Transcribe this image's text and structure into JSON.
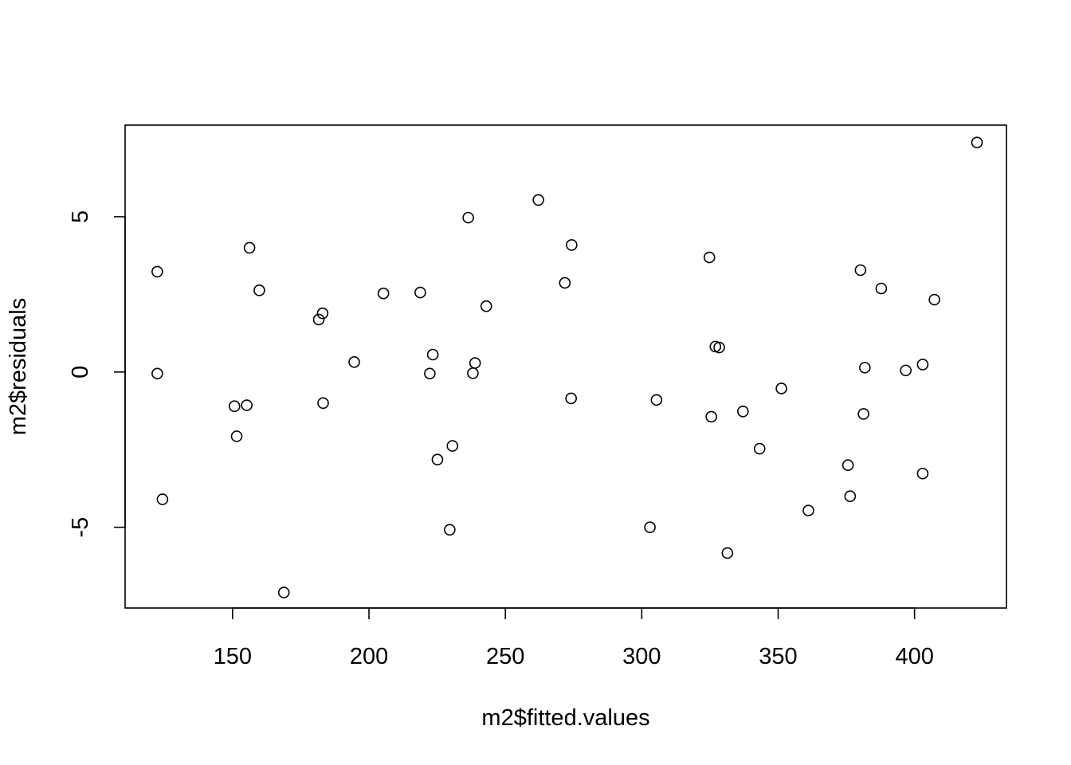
{
  "chart_data": {
    "type": "scatter",
    "title": "",
    "xlabel": "m2$fitted.values",
    "ylabel": "m2$residuals",
    "xlim": [
      110.6,
      433.7
    ],
    "ylim": [
      -7.6,
      7.95
    ],
    "x_ticks": [
      150,
      200,
      250,
      300,
      350,
      400
    ],
    "x_tick_labels": [
      "150",
      "200",
      "250",
      "300",
      "350",
      "400"
    ],
    "y_ticks": [
      -5,
      0,
      5
    ],
    "y_tick_labels": [
      "-5",
      "0",
      "5"
    ],
    "grid": false,
    "legend": "none",
    "marker": "open-circle",
    "colors": {
      "points": "#000000",
      "axes": "#000000",
      "background": "#ffffff"
    },
    "x": [
      122.4,
      122.4,
      124.3,
      150.7,
      151.5,
      155.2,
      156.2,
      159.8,
      168.8,
      181.6,
      183.0,
      183.2,
      194.6,
      205.3,
      218.8,
      222.3,
      223.4,
      225.1,
      229.6,
      230.6,
      236.4,
      238.1,
      238.9,
      243.0,
      262.1,
      271.8,
      274.1,
      274.3,
      303.0,
      305.4,
      324.8,
      325.5,
      327.0,
      328.4,
      331.4,
      337.1,
      343.2,
      351.2,
      361.1,
      375.6,
      376.4,
      380.2,
      381.3,
      381.8,
      387.8,
      396.8,
      403.0,
      403.0,
      407.3,
      422.9
    ],
    "y": [
      3.23,
      -0.05,
      -4.1,
      -1.1,
      -2.07,
      -1.07,
      4.0,
      2.63,
      -7.1,
      1.69,
      1.89,
      -1.0,
      0.32,
      2.53,
      2.56,
      -0.05,
      0.56,
      -2.82,
      -5.08,
      -2.38,
      4.97,
      -0.04,
      0.29,
      2.12,
      5.54,
      2.87,
      -0.85,
      4.09,
      -5.0,
      -0.9,
      3.69,
      -1.44,
      0.82,
      0.79,
      -5.83,
      -1.27,
      -2.47,
      -0.53,
      -4.46,
      -3.0,
      -4.0,
      3.28,
      -1.35,
      0.14,
      2.69,
      0.05,
      0.24,
      -3.27,
      2.33,
      7.39
    ]
  }
}
